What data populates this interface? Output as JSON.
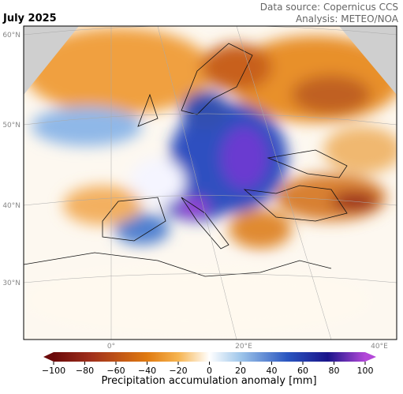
{
  "title": "July 2025",
  "credits": [
    "Data source: Copernicus CCS",
    "Analysis: METEO/NOA"
  ],
  "map": {
    "lat_labels": [
      "60°N",
      "50°N",
      "40°N",
      "30°N"
    ],
    "lon_labels": [
      "0°",
      "20°E",
      "40°E"
    ]
  },
  "colorbar": {
    "label": "Precipitation accumulation anomaly [mm]",
    "range": [
      -100,
      100
    ],
    "ticks": [
      {
        "value": -100,
        "label": "−100"
      },
      {
        "value": -80,
        "label": "−80"
      },
      {
        "value": -60,
        "label": "−60"
      },
      {
        "value": -40,
        "label": "−40"
      },
      {
        "value": -20,
        "label": "−20"
      },
      0,
      20,
      40,
      60,
      80,
      100
    ]
  }
}
